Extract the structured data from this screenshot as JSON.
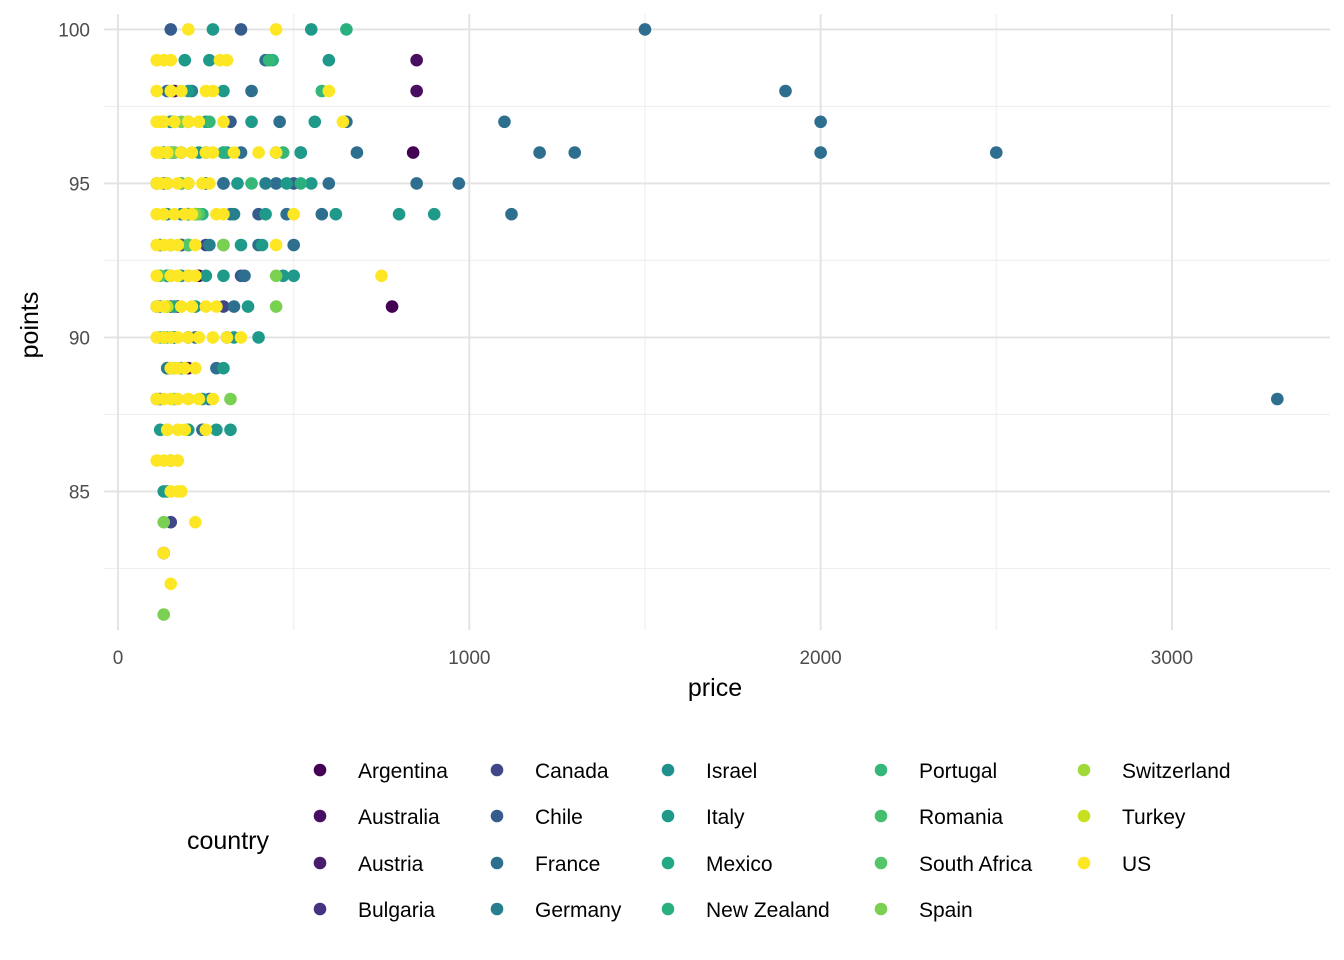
{
  "chart_data": {
    "type": "scatter",
    "title": "",
    "xlabel": "price",
    "ylabel": "points",
    "xlim": [
      -40,
      3450
    ],
    "ylim": [
      80.5,
      100.5
    ],
    "x_ticks": [
      0,
      1000,
      2000,
      3000
    ],
    "x_tick_labels": [
      "0",
      "1000",
      "2000",
      "3000"
    ],
    "y_ticks": [
      85,
      90,
      95,
      100
    ],
    "y_tick_labels": [
      "85",
      "90",
      "95",
      "100"
    ],
    "grid": true,
    "legend": {
      "title": "country",
      "position": "bottom"
    },
    "series": [
      {
        "name": "Argentina",
        "color": "#440154",
        "points": [
          [
            230,
            92
          ],
          [
            840,
            96
          ],
          [
            780,
            91
          ]
        ]
      },
      {
        "name": "Australia",
        "color": "#470E61",
        "points": [
          [
            850,
            99
          ],
          [
            850,
            98
          ],
          [
            200,
            89
          ],
          [
            160,
            98
          ],
          [
            250,
            95
          ],
          [
            130,
            83
          ],
          [
            170,
            91
          ]
        ]
      },
      {
        "name": "Austria",
        "color": "#481B6D",
        "points": [
          [
            180,
            95
          ],
          [
            200,
            93
          ],
          [
            150,
            97
          ],
          [
            140,
            92
          ],
          [
            130,
            90
          ],
          [
            220,
            94
          ],
          [
            160,
            96
          ]
        ]
      },
      {
        "name": "Bulgaria",
        "color": "#46327E",
        "points": [
          [
            140,
            89
          ],
          [
            180,
            93
          ],
          [
            150,
            91
          ]
        ]
      },
      {
        "name": "Canada",
        "color": "#3F4788",
        "points": [
          [
            150,
            84
          ],
          [
            200,
            90
          ],
          [
            250,
            93
          ],
          [
            300,
            91
          ],
          [
            140,
            92
          ]
        ]
      },
      {
        "name": "Chile",
        "color": "#365C8D",
        "points": [
          [
            150,
            100
          ],
          [
            350,
            100
          ],
          [
            250,
            96
          ],
          [
            200,
            94
          ],
          [
            300,
            95
          ],
          [
            180,
            93
          ],
          [
            350,
            92
          ],
          [
            120,
            88
          ],
          [
            150,
            89
          ],
          [
            400,
            94
          ],
          [
            500,
            95
          ],
          [
            320,
            97
          ],
          [
            140,
            95
          ]
        ]
      },
      {
        "name": "France",
        "color": "#2E6E8E",
        "points": [
          [
            1500,
            100
          ],
          [
            1900,
            98
          ],
          [
            2000,
            97
          ],
          [
            2000,
            96
          ],
          [
            2500,
            96
          ],
          [
            3300,
            88
          ],
          [
            1100,
            97
          ],
          [
            1200,
            96
          ],
          [
            1300,
            96
          ],
          [
            970,
            95
          ],
          [
            850,
            95
          ],
          [
            1120,
            94
          ],
          [
            680,
            96
          ],
          [
            650,
            97
          ],
          [
            580,
            94
          ],
          [
            500,
            93
          ],
          [
            460,
            97
          ],
          [
            420,
            99
          ],
          [
            380,
            98
          ],
          [
            350,
            96
          ],
          [
            300,
            95
          ],
          [
            450,
            95
          ],
          [
            520,
            96
          ],
          [
            400,
            93
          ],
          [
            360,
            92
          ],
          [
            330,
            91
          ],
          [
            310,
            90
          ],
          [
            280,
            89
          ],
          [
            260,
            88
          ],
          [
            240,
            87
          ],
          [
            220,
            90
          ],
          [
            200,
            92
          ],
          [
            180,
            96
          ],
          [
            160,
            97
          ],
          [
            140,
            98
          ],
          [
            120,
            93
          ],
          [
            110,
            91
          ],
          [
            130,
            95
          ],
          [
            480,
            94
          ],
          [
            600,
            95
          ],
          [
            320,
            94
          ]
        ]
      },
      {
        "name": "Germany",
        "color": "#277F8E",
        "points": [
          [
            420,
            95
          ],
          [
            300,
            96
          ],
          [
            200,
            97
          ],
          [
            180,
            94
          ],
          [
            150,
            93
          ],
          [
            120,
            91
          ],
          [
            140,
            89
          ],
          [
            160,
            90
          ],
          [
            260,
            93
          ],
          [
            330,
            94
          ],
          [
            210,
            98
          ]
        ]
      },
      {
        "name": "Israel",
        "color": "#21908C",
        "points": [
          [
            150,
            97
          ],
          [
            250,
            95
          ],
          [
            200,
            93
          ],
          [
            180,
            92
          ],
          [
            300,
            93
          ],
          [
            160,
            91
          ],
          [
            140,
            94
          ],
          [
            130,
            96
          ]
        ]
      },
      {
        "name": "Italy",
        "color": "#1F9A8A",
        "points": [
          [
            270,
            100
          ],
          [
            550,
            100
          ],
          [
            600,
            99
          ],
          [
            380,
            97
          ],
          [
            450,
            96
          ],
          [
            520,
            96
          ],
          [
            550,
            95
          ],
          [
            620,
            94
          ],
          [
            800,
            94
          ],
          [
            900,
            94
          ],
          [
            350,
            93
          ],
          [
            300,
            92
          ],
          [
            400,
            90
          ],
          [
            320,
            87
          ],
          [
            280,
            87
          ],
          [
            240,
            88
          ],
          [
            200,
            87
          ],
          [
            150,
            86
          ],
          [
            130,
            85
          ],
          [
            120,
            87
          ],
          [
            110,
            88
          ],
          [
            180,
            89
          ],
          [
            220,
            91
          ],
          [
            250,
            92
          ],
          [
            160,
            90
          ],
          [
            200,
            94
          ],
          [
            230,
            96
          ],
          [
            300,
            98
          ],
          [
            260,
            99
          ],
          [
            340,
            95
          ],
          [
            420,
            94
          ],
          [
            480,
            95
          ],
          [
            560,
            97
          ],
          [
            110,
            95
          ],
          [
            140,
            85
          ],
          [
            300,
            89
          ],
          [
            330,
            90
          ],
          [
            200,
            98
          ],
          [
            190,
            99
          ],
          [
            250,
            97
          ],
          [
            310,
            96
          ],
          [
            470,
            92
          ],
          [
            500,
            92
          ],
          [
            370,
            91
          ],
          [
            410,
            93
          ]
        ]
      },
      {
        "name": "Mexico",
        "color": "#22A884",
        "points": [
          [
            140,
            92
          ],
          [
            160,
            91
          ],
          [
            180,
            89
          ],
          [
            150,
            90
          ]
        ]
      },
      {
        "name": "New Zealand",
        "color": "#2AB07F",
        "points": [
          [
            650,
            100
          ],
          [
            440,
            99
          ],
          [
            520,
            95
          ],
          [
            300,
            96
          ],
          [
            240,
            94
          ],
          [
            200,
            95
          ]
        ]
      },
      {
        "name": "Portugal",
        "color": "#35B779",
        "points": [
          [
            580,
            98
          ],
          [
            430,
            99
          ],
          [
            470,
            96
          ],
          [
            380,
            95
          ],
          [
            260,
            97
          ],
          [
            200,
            93
          ],
          [
            150,
            92
          ],
          [
            120,
            90
          ]
        ]
      },
      {
        "name": "Romania",
        "color": "#44BF70",
        "points": [
          [
            160,
            88
          ],
          [
            140,
            87
          ]
        ]
      },
      {
        "name": "South Africa",
        "color": "#54C568",
        "points": [
          [
            230,
            94
          ],
          [
            180,
            95
          ],
          [
            150,
            96
          ],
          [
            200,
            93
          ],
          [
            120,
            92
          ],
          [
            140,
            90
          ]
        ]
      },
      {
        "name": "Spain",
        "color": "#7AD151",
        "points": [
          [
            130,
            81
          ],
          [
            450,
            92
          ],
          [
            450,
            91
          ],
          [
            320,
            88
          ],
          [
            130,
            84
          ],
          [
            160,
            96
          ],
          [
            180,
            97
          ],
          [
            200,
            95
          ],
          [
            220,
            94
          ],
          [
            140,
            91
          ],
          [
            300,
            93
          ]
        ]
      },
      {
        "name": "Switzerland",
        "color": "#A0DA39",
        "points": [
          [
            150,
            93
          ]
        ]
      },
      {
        "name": "Turkey",
        "color": "#C8E020",
        "points": [
          [
            140,
            91
          ],
          [
            160,
            89
          ]
        ]
      },
      {
        "name": "US",
        "color": "#FDE725",
        "points": [
          [
            200,
            100
          ],
          [
            450,
            100
          ],
          [
            110,
            99
          ],
          [
            130,
            99
          ],
          [
            150,
            99
          ],
          [
            290,
            99
          ],
          [
            310,
            99
          ],
          [
            110,
            98
          ],
          [
            150,
            98
          ],
          [
            180,
            98
          ],
          [
            250,
            98
          ],
          [
            270,
            98
          ],
          [
            600,
            98
          ],
          [
            110,
            97
          ],
          [
            120,
            97
          ],
          [
            130,
            97
          ],
          [
            160,
            97
          ],
          [
            200,
            97
          ],
          [
            230,
            97
          ],
          [
            300,
            97
          ],
          [
            640,
            97
          ],
          [
            110,
            96
          ],
          [
            120,
            96
          ],
          [
            140,
            96
          ],
          [
            180,
            96
          ],
          [
            210,
            96
          ],
          [
            250,
            96
          ],
          [
            270,
            96
          ],
          [
            330,
            96
          ],
          [
            400,
            96
          ],
          [
            450,
            96
          ],
          [
            110,
            95
          ],
          [
            120,
            95
          ],
          [
            140,
            95
          ],
          [
            170,
            95
          ],
          [
            200,
            95
          ],
          [
            240,
            95
          ],
          [
            260,
            95
          ],
          [
            110,
            94
          ],
          [
            130,
            94
          ],
          [
            160,
            94
          ],
          [
            190,
            94
          ],
          [
            210,
            94
          ],
          [
            280,
            94
          ],
          [
            300,
            94
          ],
          [
            500,
            94
          ],
          [
            110,
            93
          ],
          [
            130,
            93
          ],
          [
            150,
            93
          ],
          [
            170,
            93
          ],
          [
            220,
            93
          ],
          [
            450,
            93
          ],
          [
            110,
            92
          ],
          [
            150,
            92
          ],
          [
            170,
            92
          ],
          [
            200,
            92
          ],
          [
            220,
            92
          ],
          [
            750,
            92
          ],
          [
            110,
            91
          ],
          [
            130,
            91
          ],
          [
            180,
            91
          ],
          [
            210,
            91
          ],
          [
            250,
            91
          ],
          [
            280,
            91
          ],
          [
            110,
            90
          ],
          [
            130,
            90
          ],
          [
            150,
            90
          ],
          [
            170,
            90
          ],
          [
            200,
            90
          ],
          [
            230,
            90
          ],
          [
            270,
            90
          ],
          [
            310,
            90
          ],
          [
            350,
            90
          ],
          [
            150,
            89
          ],
          [
            170,
            89
          ],
          [
            190,
            89
          ],
          [
            220,
            89
          ],
          [
            110,
            88
          ],
          [
            130,
            88
          ],
          [
            150,
            88
          ],
          [
            170,
            88
          ],
          [
            200,
            88
          ],
          [
            230,
            88
          ],
          [
            270,
            88
          ],
          [
            140,
            87
          ],
          [
            170,
            87
          ],
          [
            190,
            87
          ],
          [
            250,
            87
          ],
          [
            110,
            86
          ],
          [
            130,
            86
          ],
          [
            150,
            86
          ],
          [
            170,
            86
          ],
          [
            150,
            85
          ],
          [
            170,
            85
          ],
          [
            180,
            85
          ],
          [
            220,
            84
          ],
          [
            130,
            83
          ],
          [
            150,
            82
          ]
        ]
      }
    ]
  }
}
